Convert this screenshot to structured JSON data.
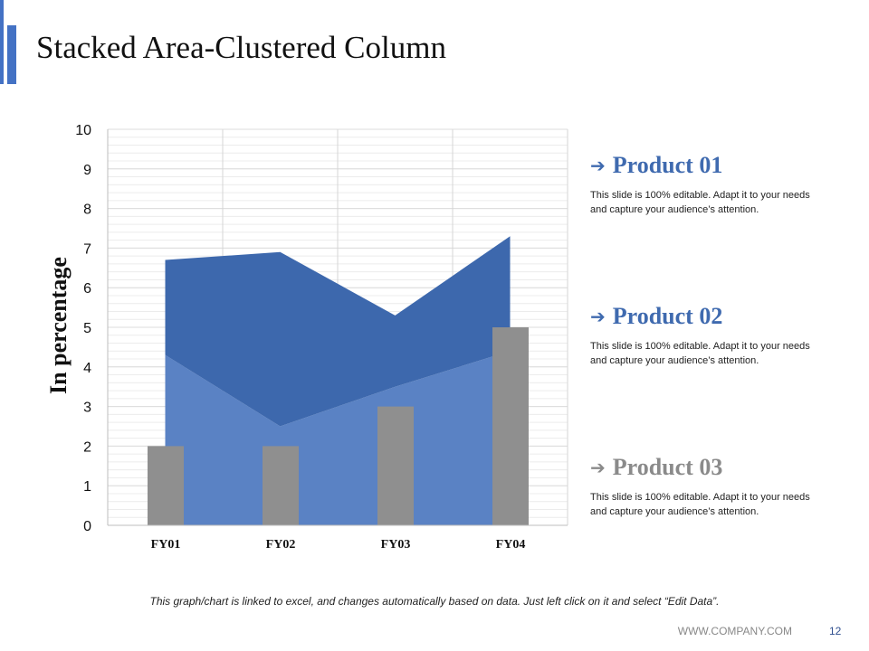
{
  "slide": {
    "title": "Stacked Area-Clustered Column",
    "footnote": "This graph/chart is linked to excel, and changes automatically based on data. Just left click on it and select “Edit Data”.",
    "footer_url": "WWW.COMPANY.COM",
    "page_number": "12"
  },
  "legend": {
    "items": [
      {
        "name": "Product 01",
        "color": "#3f6aaf",
        "description": "This slide is 100% editable. Adapt it to your needs and capture your audience’s attention.",
        "arrow": "➔"
      },
      {
        "name": "Product 02",
        "color": "#3f6aaf",
        "description": "This slide is 100% editable. Adapt it to your needs and capture your audience’s attention.",
        "arrow": "➔"
      },
      {
        "name": "Product 03",
        "color": "#8a8a8a",
        "description": "This slide is 100% editable. Adapt it to your needs and capture your audience’s attention.",
        "arrow": "➔"
      }
    ]
  },
  "chart_data": {
    "type": "area",
    "categories": [
      "FY01",
      "FY02",
      "FY03",
      "FY04"
    ],
    "category_labels": [
      "FY01",
      "FY02",
      "FY03",
      "FY04"
    ],
    "ylabel": "In percentage",
    "ylim": [
      0,
      10
    ],
    "yticks": [
      "0",
      "1",
      "2",
      "3",
      "4",
      "5",
      "6",
      "7",
      "8",
      "9",
      "10"
    ],
    "grid": true,
    "series": [
      {
        "name": "Product 01",
        "kind": "stacked-area",
        "values": [
          4.3,
          2.5,
          3.5,
          4.4
        ],
        "color": "#5a82c4"
      },
      {
        "name": "Product 02",
        "kind": "stacked-area",
        "values": [
          2.4,
          4.4,
          1.8,
          2.9
        ],
        "color": "#3d68ad"
      },
      {
        "name": "Product 03",
        "kind": "column",
        "values": [
          2,
          2,
          3,
          5
        ],
        "color": "#8f8f8f"
      }
    ]
  }
}
